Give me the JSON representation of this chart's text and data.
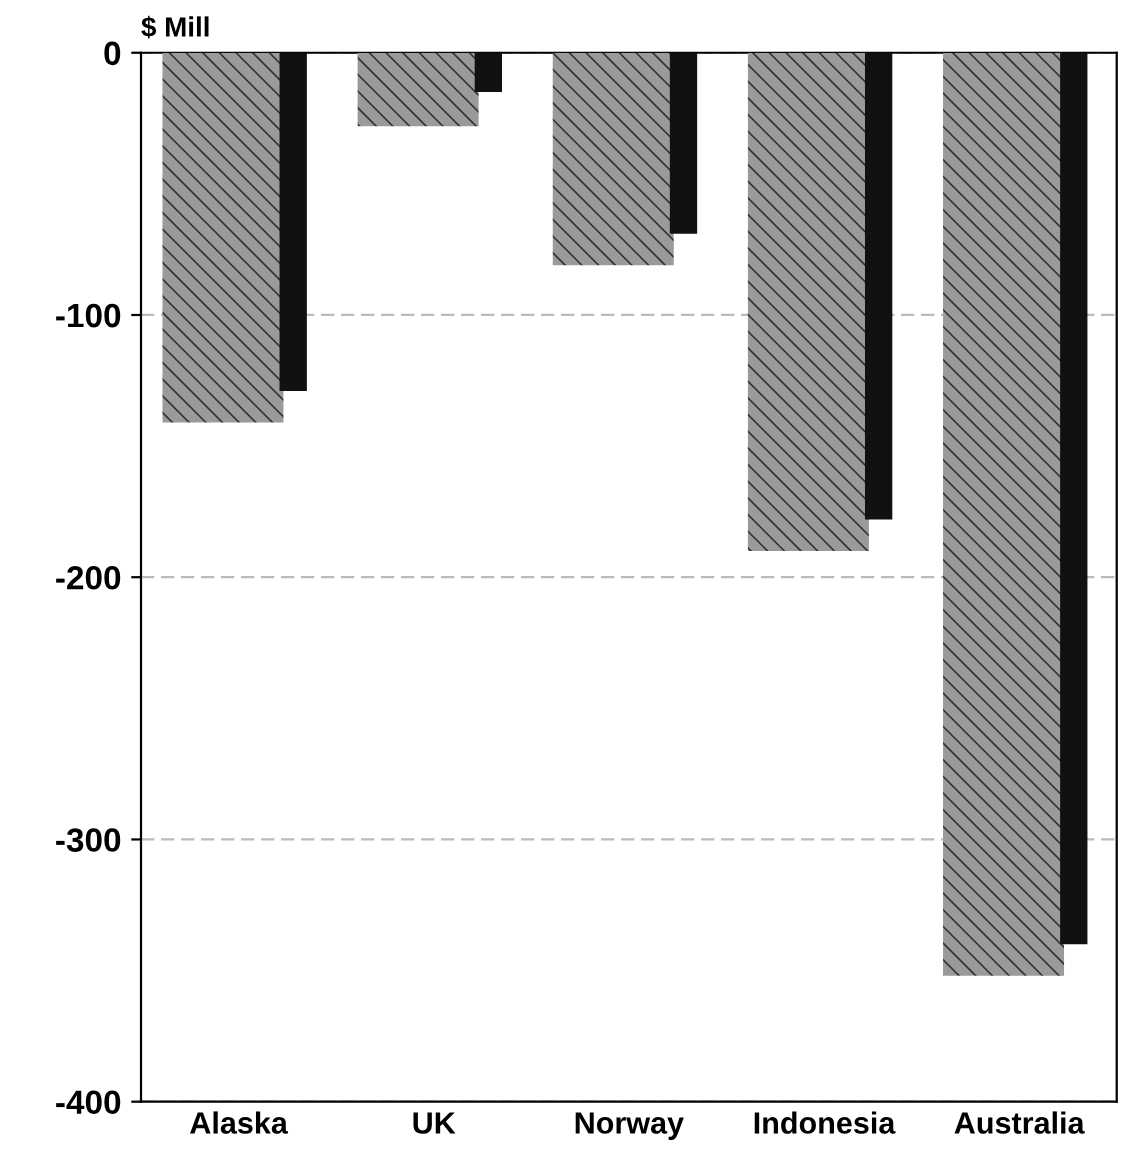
{
  "chart_data": {
    "type": "bar",
    "ylabel": "$ Mill",
    "categories": [
      "Alaska",
      "UK",
      "Norway",
      "Indonesia",
      "Australia"
    ],
    "series": [
      {
        "color": "#9a9a9a",
        "values": [
          -141,
          -28,
          -81,
          -190,
          -352
        ]
      },
      {
        "color": "#111111",
        "values": [
          -129,
          -15,
          -69,
          -178,
          -340
        ]
      }
    ],
    "ylim": [
      -400,
      0
    ],
    "yticks": [
      -400,
      -300,
      -200,
      -100,
      0
    ],
    "grid": "y",
    "legend": false
  }
}
